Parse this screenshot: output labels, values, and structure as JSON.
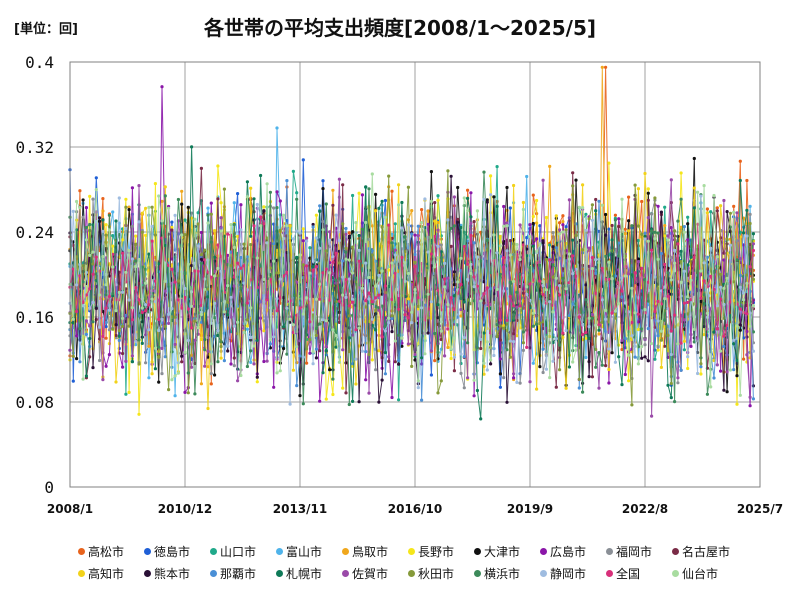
{
  "unit_label": "[単位：回]",
  "title": "各世帯の平均支出頻度[2008/1～2025/5]",
  "chart_data": {
    "type": "line",
    "title": "各世帯の平均支出頻度[2008/1～2025/5]",
    "unit": "[単位：回]",
    "x_start": "2008/1",
    "x_end": "2025/5",
    "x_tick_labels": [
      "2008/1",
      "2010/12",
      "2013/11",
      "2016/10",
      "2019/9",
      "2022/8",
      "2025/7"
    ],
    "xlim": [
      "2008/1",
      "2025/7"
    ],
    "ylim": [
      0,
      0.4
    ],
    "y_tick_labels": [
      "0",
      "0.08",
      "0.16",
      "0.24",
      "0.32",
      "0.4"
    ],
    "y_ticks": [
      0,
      0.08,
      0.16,
      0.24,
      0.32,
      0.4
    ],
    "grid": true,
    "legend_position": "bottom",
    "series": [
      {
        "name": "高松市",
        "color": "#e8631c",
        "mean": 0.205,
        "spread": 0.055
      },
      {
        "name": "徳島市",
        "color": "#1f5fd6",
        "mean": 0.2,
        "spread": 0.055
      },
      {
        "name": "山口市",
        "color": "#20a98a",
        "mean": 0.195,
        "spread": 0.055
      },
      {
        "name": "富山市",
        "color": "#4fb3ea",
        "mean": 0.19,
        "spread": 0.05
      },
      {
        "name": "鳥取市",
        "color": "#f0a71c",
        "mean": 0.2,
        "spread": 0.055
      },
      {
        "name": "長野市",
        "color": "#f5e61a",
        "mean": 0.185,
        "spread": 0.06
      },
      {
        "name": "大津市",
        "color": "#111111",
        "mean": 0.19,
        "spread": 0.055
      },
      {
        "name": "広島市",
        "color": "#8a16a8",
        "mean": 0.18,
        "spread": 0.055
      },
      {
        "name": "福岡市",
        "color": "#8a8f96",
        "mean": 0.185,
        "spread": 0.05
      },
      {
        "name": "名古屋市",
        "color": "#7a2b46",
        "mean": 0.19,
        "spread": 0.055
      },
      {
        "name": "高知市",
        "color": "#f2d21a",
        "mean": 0.19,
        "spread": 0.06
      },
      {
        "name": "熊本市",
        "color": "#2a1036",
        "mean": 0.185,
        "spread": 0.055
      },
      {
        "name": "那覇市",
        "color": "#4a8fd6",
        "mean": 0.175,
        "spread": 0.05
      },
      {
        "name": "札幌市",
        "color": "#0f7a58",
        "mean": 0.18,
        "spread": 0.055
      },
      {
        "name": "佐賀市",
        "color": "#9a4aa8",
        "mean": 0.185,
        "spread": 0.055
      },
      {
        "name": "秋田市",
        "color": "#869a3a",
        "mean": 0.18,
        "spread": 0.055
      },
      {
        "name": "横浜市",
        "color": "#3c8a5a",
        "mean": 0.185,
        "spread": 0.05
      },
      {
        "name": "静岡市",
        "color": "#9fbce0",
        "mean": 0.18,
        "spread": 0.05
      },
      {
        "name": "全国",
        "color": "#d8307a",
        "mean": 0.19,
        "spread": 0.03
      },
      {
        "name": "仙台市",
        "color": "#a8dca0",
        "mean": 0.19,
        "spread": 0.055
      }
    ]
  },
  "colors": {
    "background": "#ffffff",
    "grid": "#a0a0a0",
    "plot_border": "#808080"
  }
}
